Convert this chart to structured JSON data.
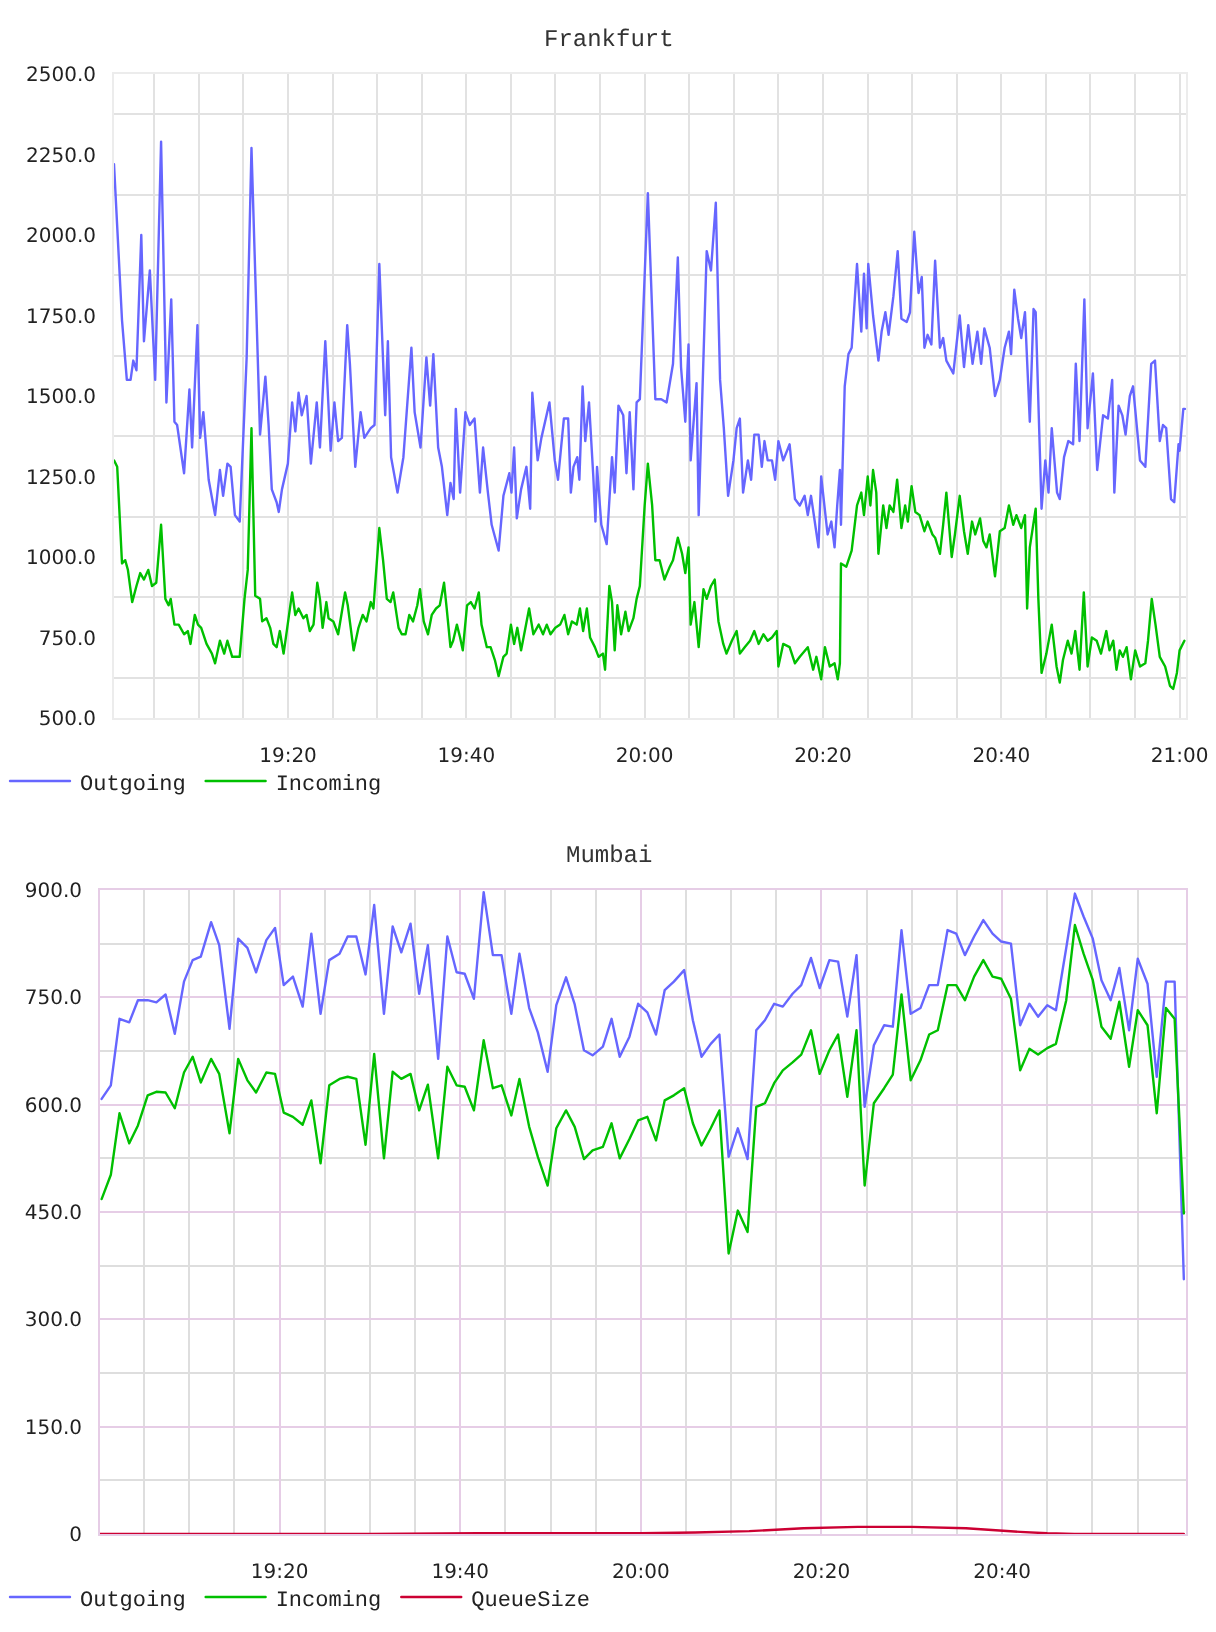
{
  "chart_data": [
    {
      "type": "line",
      "title": "Frankfurt",
      "grid": true,
      "legend": "bottom left",
      "xlim": [
        19.008,
        21.012
      ],
      "xticks": [
        {
          "value": 19.0833,
          "label": null
        },
        {
          "value": 19.1667,
          "label": null
        },
        {
          "value": 19.25,
          "label": null
        },
        {
          "value": 19.3333,
          "label": "19:20"
        },
        {
          "value": 19.4167,
          "label": null
        },
        {
          "value": 19.5,
          "label": null
        },
        {
          "value": 19.5833,
          "label": null
        },
        {
          "value": 19.6667,
          "label": "19:40"
        },
        {
          "value": 19.75,
          "label": null
        },
        {
          "value": 19.8333,
          "label": null
        },
        {
          "value": 19.9167,
          "label": null
        },
        {
          "value": 20,
          "label": "20:00"
        },
        {
          "value": 20.0833,
          "label": null
        },
        {
          "value": 20.1667,
          "label": null
        },
        {
          "value": 20.25,
          "label": null
        },
        {
          "value": 20.3333,
          "label": "20:20"
        },
        {
          "value": 20.4167,
          "label": null
        },
        {
          "value": 20.5,
          "label": null
        },
        {
          "value": 20.5833,
          "label": null
        },
        {
          "value": 20.6667,
          "label": "20:40"
        },
        {
          "value": 20.75,
          "label": null
        },
        {
          "value": 20.8333,
          "label": null
        },
        {
          "value": 20.9167,
          "label": null
        },
        {
          "value": 21,
          "label": "21:00"
        }
      ],
      "ylim": [
        500,
        2500
      ],
      "yticks": [
        {
          "value": 500,
          "label": "500.0"
        },
        {
          "value": 625,
          "label": null
        },
        {
          "value": 750,
          "label": "750.0"
        },
        {
          "value": 875,
          "label": null
        },
        {
          "value": 1000,
          "label": "1000.0"
        },
        {
          "value": 1125,
          "label": null
        },
        {
          "value": 1250,
          "label": "1250.0"
        },
        {
          "value": 1375,
          "label": null
        },
        {
          "value": 1500,
          "label": "1500.0"
        },
        {
          "value": 1625,
          "label": null
        },
        {
          "value": 1750,
          "label": "1750.0"
        },
        {
          "value": 1875,
          "label": null
        },
        {
          "value": 2000,
          "label": "2000.0"
        },
        {
          "value": 2125,
          "label": null
        },
        {
          "value": 2250,
          "label": "2250.0"
        },
        {
          "value": 2375,
          "label": null
        },
        {
          "value": 2500,
          "label": "2500.0"
        }
      ],
      "series": [
        {
          "name": "Outgoing",
          "color": "#6666ff",
          "x": [
            19.008,
            19.023,
            19.032,
            19.039,
            19.044,
            19.05,
            19.059,
            19.064,
            19.075,
            19.085,
            19.096,
            19.106,
            19.115,
            19.121,
            19.126,
            19.139,
            19.149,
            19.154,
            19.164,
            19.169,
            19.175,
            19.185,
            19.197,
            19.206,
            19.212,
            19.22,
            19.226,
            19.234,
            19.243,
            19.256,
            19.265,
            19.281,
            19.291,
            19.297,
            19.303,
            19.312,
            19.316,
            19.322,
            19.333,
            19.341,
            19.347,
            19.353,
            19.359,
            19.368,
            19.376,
            19.387,
            19.393,
            19.403,
            19.413,
            19.42,
            19.427,
            19.434,
            19.444,
            19.449,
            19.459,
            19.469,
            19.476,
            19.488,
            19.495,
            19.504,
            19.515,
            19.52,
            19.526,
            19.538,
            19.549,
            19.564,
            19.57,
            19.581,
            19.592,
            19.599,
            19.605,
            19.614,
            19.621,
            19.631,
            19.637,
            19.643,
            19.647,
            19.655,
            19.665,
            19.673,
            19.682,
            19.692,
            19.698,
            19.707,
            19.714,
            19.727,
            19.736,
            19.747,
            19.751,
            19.756,
            19.761,
            19.769,
            19.779,
            19.786,
            19.79,
            19.8,
            19.807,
            19.822,
            19.832,
            19.838,
            19.849,
            19.857,
            19.862,
            19.867,
            19.874,
            19.878,
            19.884,
            19.889,
            19.896,
            19.904,
            19.908,
            19.911,
            19.919,
            19.929,
            19.939,
            19.944,
            19.951,
            19.96,
            19.966,
            19.972,
            19.979,
            19.985,
            19.991,
            20.006,
            20.02,
            20.031,
            20.041,
            20.053,
            20.062,
            20.068,
            20.076,
            20.082,
            20.086,
            20.097,
            20.101,
            20.116,
            20.124,
            20.133,
            20.141,
            20.148,
            20.156,
            20.166,
            20.172,
            20.178,
            20.184,
            20.193,
            20.199,
            20.205,
            20.213,
            20.219,
            20.224,
            20.23,
            20.238,
            20.244,
            20.25,
            20.259,
            20.271,
            20.281,
            20.29,
            20.299,
            20.305,
            20.311,
            20.325,
            20.33,
            20.342,
            20.349,
            20.355,
            20.36,
            20.365,
            20.367,
            20.374,
            20.381,
            20.387,
            20.397,
            20.405,
            20.41,
            20.415,
            20.418,
            20.427,
            20.437,
            20.443,
            20.45,
            20.456,
            20.465,
            20.473,
            20.48,
            20.49,
            20.496,
            20.504,
            20.512,
            20.518,
            20.523,
            20.529,
            20.536,
            20.543,
            20.552,
            20.558,
            20.564,
            20.577,
            20.589,
            20.597,
            20.605,
            20.613,
            20.622,
            20.629,
            20.635,
            20.645,
            20.655,
            20.664,
            20.673,
            20.681,
            20.685,
            20.691,
            20.698,
            20.704,
            20.711,
            20.72,
            20.727,
            20.731,
            20.742,
            20.749,
            20.755,
            20.761,
            20.771,
            20.776,
            20.784,
            20.792,
            20.801,
            20.806,
            20.813,
            20.822,
            20.828,
            20.838,
            20.846,
            20.857,
            20.866,
            20.874,
            20.878,
            20.886,
            20.893,
            20.899,
            20.907,
            20.913,
            20.926,
            20.936,
            20.947,
            20.954,
            20.963,
            20.969,
            20.975,
            20.984,
            20.99,
            20.998,
            21.0,
            21.007,
            21.01
          ],
          "values": [
            2220,
            1735,
            1550,
            1550,
            1610,
            1580,
            2000,
            1670,
            1890,
            1550,
            2290,
            1480,
            1800,
            1420,
            1410,
            1260,
            1520,
            1340,
            1720,
            1370,
            1450,
            1240,
            1130,
            1270,
            1190,
            1290,
            1280,
            1130,
            1110,
            1620,
            2270,
            1380,
            1560,
            1410,
            1210,
            1170,
            1140,
            1210,
            1290,
            1480,
            1390,
            1510,
            1440,
            1500,
            1290,
            1480,
            1340,
            1670,
            1330,
            1480,
            1360,
            1370,
            1720,
            1600,
            1280,
            1450,
            1370,
            1400,
            1410,
            1910,
            1440,
            1670,
            1310,
            1200,
            1310,
            1650,
            1450,
            1340,
            1620,
            1470,
            1630,
            1340,
            1280,
            1130,
            1230,
            1180,
            1460,
            1200,
            1450,
            1410,
            1430,
            1200,
            1340,
            1200,
            1100,
            1020,
            1190,
            1260,
            1200,
            1340,
            1120,
            1210,
            1280,
            1150,
            1510,
            1300,
            1370,
            1480,
            1300,
            1240,
            1430,
            1430,
            1200,
            1280,
            1310,
            1240,
            1530,
            1360,
            1480,
            1250,
            1110,
            1280,
            1100,
            1040,
            1310,
            1200,
            1470,
            1440,
            1260,
            1450,
            1210,
            1480,
            1490,
            2130,
            1490,
            1490,
            1480,
            1600,
            1930,
            1590,
            1420,
            1660,
            1300,
            1540,
            1130,
            1950,
            1890,
            2100,
            1550,
            1400,
            1190,
            1300,
            1400,
            1430,
            1200,
            1300,
            1240,
            1380,
            1380,
            1280,
            1360,
            1300,
            1300,
            1240,
            1360,
            1300,
            1350,
            1180,
            1160,
            1190,
            1130,
            1190,
            1030,
            1250,
            1070,
            1110,
            1030,
            1160,
            1270,
            1100,
            1530,
            1630,
            1650,
            1910,
            1700,
            1880,
            1710,
            1910,
            1750,
            1610,
            1700,
            1760,
            1690,
            1810,
            1950,
            1740,
            1730,
            1760,
            2010,
            1820,
            1870,
            1650,
            1690,
            1660,
            1920,
            1650,
            1680,
            1610,
            1570,
            1750,
            1590,
            1720,
            1600,
            1700,
            1600,
            1710,
            1650,
            1500,
            1550,
            1650,
            1700,
            1630,
            1830,
            1740,
            1680,
            1760,
            1420,
            1770,
            1760,
            1150,
            1300,
            1200,
            1400,
            1200,
            1180,
            1310,
            1360,
            1350,
            1600,
            1360,
            1800,
            1400,
            1570,
            1270,
            1440,
            1430,
            1550,
            1200,
            1470,
            1440,
            1380,
            1500,
            1530,
            1300,
            1280,
            1600,
            1610,
            1360,
            1410,
            1400,
            1180,
            1170,
            1350,
            1330,
            1460,
            1460
          ]
        },
        {
          "name": "Incoming",
          "color": "#00c000",
          "x": [
            19.008,
            19.014,
            19.023,
            19.029,
            19.034,
            19.042,
            19.05,
            19.057,
            19.064,
            19.072,
            19.079,
            19.087,
            19.096,
            19.104,
            19.11,
            19.114,
            19.121,
            19.129,
            19.139,
            19.146,
            19.151,
            19.159,
            19.165,
            19.171,
            19.181,
            19.191,
            19.197,
            19.206,
            19.214,
            19.22,
            19.229,
            19.237,
            19.243,
            19.252,
            19.258,
            19.265,
            19.272,
            19.281,
            19.285,
            19.293,
            19.3,
            19.306,
            19.312,
            19.318,
            19.325,
            19.331,
            19.341,
            19.347,
            19.353,
            19.362,
            19.368,
            19.374,
            19.381,
            19.388,
            19.393,
            19.398,
            19.405,
            19.409,
            19.418,
            19.427,
            19.433,
            19.44,
            19.445,
            19.456,
            19.465,
            19.473,
            19.48,
            19.488,
            19.493,
            19.504,
            19.511,
            19.518,
            19.525,
            19.53,
            19.54,
            19.546,
            19.553,
            19.56,
            19.567,
            19.575,
            19.58,
            19.587,
            19.595,
            19.602,
            19.61,
            19.617,
            19.625,
            19.63,
            19.637,
            19.642,
            19.649,
            19.655,
            19.66,
            19.668,
            19.675,
            19.682,
            19.69,
            19.695,
            19.705,
            19.712,
            19.72,
            19.727,
            19.736,
            19.742,
            19.75,
            19.756,
            19.762,
            19.769,
            19.776,
            19.784,
            19.792,
            19.802,
            19.81,
            19.817,
            19.824,
            19.833,
            19.842,
            19.85,
            19.857,
            19.864,
            19.873,
            19.879,
            19.885,
            19.892,
            19.898,
            19.907,
            19.914,
            19.922,
            19.926,
            19.934,
            19.939,
            19.944,
            19.949,
            19.956,
            19.964,
            19.97,
            19.979,
            19.985,
            19.991,
            20.0,
            20.006,
            20.014,
            20.02,
            20.028,
            20.037,
            20.047,
            20.053,
            20.062,
            20.07,
            20.076,
            20.082,
            20.086,
            20.093,
            20.101,
            20.11,
            20.116,
            20.124,
            20.131,
            20.138,
            20.147,
            20.153,
            20.163,
            20.172,
            20.178,
            20.187,
            20.197,
            20.205,
            20.213,
            20.222,
            20.23,
            20.238,
            20.247,
            20.25,
            20.259,
            20.271,
            20.281,
            20.29,
            20.305,
            20.315,
            20.321,
            20.33,
            20.337,
            20.346,
            20.355,
            20.361,
            20.365,
            20.367,
            20.377,
            20.387,
            20.397,
            20.405,
            20.41,
            20.417,
            20.422,
            20.427,
            20.433,
            20.437,
            20.446,
            20.452,
            20.458,
            20.465,
            20.472,
            20.48,
            20.487,
            20.492,
            20.499,
            20.506,
            20.514,
            20.523,
            20.529,
            20.538,
            20.543,
            20.552,
            20.558,
            20.564,
            20.574,
            20.58,
            20.589,
            20.597,
            20.604,
            20.612,
            20.618,
            20.627,
            20.633,
            20.639,
            20.645,
            20.655,
            20.664,
            20.673,
            20.681,
            20.689,
            20.695,
            20.704,
            20.711,
            20.715,
            20.72,
            20.731,
            20.736,
            20.742,
            20.751,
            20.761,
            20.77,
            20.776,
            20.782,
            20.791,
            20.798,
            20.805,
            20.813,
            20.821,
            20.828,
            20.836,
            20.845,
            20.853,
            20.863,
            20.869,
            20.876,
            20.882,
            20.888,
            20.894,
            20.901,
            20.909,
            20.917,
            20.926,
            20.936,
            20.941,
            20.948,
            20.955,
            20.963,
            20.973,
            20.982,
            20.988,
            20.995,
            21.0,
            21.009
          ],
          "values": [
            1300,
            1280,
            980,
            990,
            960,
            860,
            910,
            950,
            930,
            960,
            910,
            920,
            1100,
            870,
            850,
            870,
            790,
            790,
            760,
            770,
            730,
            820,
            790,
            780,
            730,
            700,
            670,
            740,
            700,
            740,
            690,
            690,
            690,
            870,
            960,
            1400,
            880,
            870,
            800,
            810,
            780,
            730,
            720,
            770,
            700,
            770,
            890,
            820,
            840,
            810,
            820,
            770,
            790,
            920,
            870,
            780,
            860,
            810,
            800,
            760,
            820,
            890,
            850,
            710,
            780,
            820,
            800,
            860,
            840,
            1090,
            990,
            870,
            860,
            890,
            780,
            760,
            760,
            820,
            800,
            850,
            900,
            800,
            760,
            820,
            840,
            850,
            920,
            840,
            720,
            740,
            790,
            750,
            710,
            850,
            860,
            840,
            890,
            790,
            720,
            720,
            680,
            630,
            690,
            700,
            790,
            730,
            780,
            710,
            770,
            840,
            760,
            790,
            760,
            790,
            760,
            780,
            790,
            820,
            760,
            800,
            790,
            840,
            770,
            840,
            750,
            720,
            690,
            700,
            650,
            910,
            860,
            710,
            850,
            760,
            830,
            770,
            810,
            870,
            910,
            1160,
            1290,
            1160,
            990,
            990,
            930,
            970,
            990,
            1060,
            1010,
            950,
            1030,
            790,
            860,
            720,
            900,
            870,
            910,
            930,
            800,
            730,
            700,
            740,
            770,
            700,
            720,
            740,
            770,
            730,
            760,
            740,
            750,
            770,
            660,
            730,
            720,
            670,
            690,
            720,
            650,
            690,
            620,
            720,
            660,
            670,
            620,
            670,
            980,
            970,
            1020,
            1160,
            1200,
            1130,
            1250,
            1160,
            1270,
            1200,
            1010,
            1160,
            1090,
            1160,
            1140,
            1240,
            1090,
            1160,
            1110,
            1220,
            1140,
            1130,
            1080,
            1110,
            1070,
            1060,
            1010,
            1100,
            1200,
            1000,
            1070,
            1190,
            1080,
            1010,
            1110,
            1070,
            1120,
            1050,
            1030,
            1070,
            940,
            1080,
            1090,
            1160,
            1100,
            1130,
            1090,
            1130,
            840,
            1030,
            1150,
            870,
            640,
            700,
            790,
            660,
            610,
            680,
            740,
            700,
            770,
            650,
            890,
            660,
            750,
            740,
            700,
            770,
            710,
            740,
            650,
            710,
            690,
            720,
            620,
            710,
            660,
            670,
            740,
            870,
            790,
            690,
            660,
            600,
            590,
            640,
            710,
            740
          ]
        }
      ]
    },
    {
      "type": "line",
      "title": "Mumbai",
      "grid": true,
      "legend": "bottom left",
      "xlim": [
        19.002,
        21.006
      ],
      "xticks": [
        {
          "value": 19.0833,
          "label": null
        },
        {
          "value": 19.1667,
          "label": null
        },
        {
          "value": 19.25,
          "label": null
        },
        {
          "value": 19.3333,
          "label": "19:20"
        },
        {
          "value": 19.4167,
          "label": null
        },
        {
          "value": 19.5,
          "label": null
        },
        {
          "value": 19.5833,
          "label": null
        },
        {
          "value": 19.6667,
          "label": "19:40"
        },
        {
          "value": 19.75,
          "label": null
        },
        {
          "value": 19.8333,
          "label": null
        },
        {
          "value": 19.9167,
          "label": null
        },
        {
          "value": 20,
          "label": "20:00"
        },
        {
          "value": 20.0833,
          "label": null
        },
        {
          "value": 20.1667,
          "label": null
        },
        {
          "value": 20.25,
          "label": null
        },
        {
          "value": 20.3333,
          "label": "20:20"
        },
        {
          "value": 20.4167,
          "label": null
        },
        {
          "value": 20.5,
          "label": null
        },
        {
          "value": 20.5833,
          "label": null
        },
        {
          "value": 20.6667,
          "label": "20:40"
        },
        {
          "value": 20.75,
          "label": null
        },
        {
          "value": 20.8333,
          "label": null
        },
        {
          "value": 20.9167,
          "label": null
        }
      ],
      "ylim": [
        0,
        900
      ],
      "yticks": [
        0,
        {
          "value": 75,
          "label": null
        },
        {
          "value": 150,
          "label": "150.0"
        },
        {
          "value": 225,
          "label": null
        },
        {
          "value": 300,
          "label": "300.0"
        },
        {
          "value": 375,
          "label": null
        },
        {
          "value": 450,
          "label": "450.0"
        },
        {
          "value": 525,
          "label": null
        },
        {
          "value": 600,
          "label": "600.0"
        },
        {
          "value": 675,
          "label": null
        },
        {
          "value": 750,
          "label": "750.0"
        },
        {
          "value": 825,
          "label": null
        },
        {
          "value": 900,
          "label": "900.0"
        }
      ],
      "x": [
        19.005,
        19.022,
        19.038,
        19.056,
        19.072,
        19.09,
        19.106,
        19.123,
        19.14,
        19.157,
        19.173,
        19.188,
        19.207,
        19.222,
        19.241,
        19.257,
        19.274,
        19.29,
        19.309,
        19.325,
        19.341,
        19.358,
        19.376,
        19.392,
        19.409,
        19.425,
        19.444,
        19.459,
        19.475,
        19.492,
        19.508,
        19.526,
        19.542,
        19.558,
        19.575,
        19.591,
        19.607,
        19.626,
        19.643,
        19.66,
        19.675,
        19.692,
        19.71,
        19.727,
        19.743,
        19.761,
        19.776,
        19.794,
        19.81,
        19.828,
        19.844,
        19.862,
        19.878,
        19.895,
        19.911,
        19.93,
        19.946,
        19.961,
        19.979,
        19.995,
        20.012,
        20.028,
        20.044,
        20.061,
        20.08,
        20.096,
        20.112,
        20.129,
        20.145,
        20.162,
        20.179,
        20.197,
        20.213,
        20.229,
        20.246,
        20.262,
        20.28,
        20.296,
        20.314,
        20.33,
        20.348,
        20.364,
        20.381,
        20.398,
        20.413,
        20.43,
        20.449,
        20.465,
        20.481,
        20.498,
        20.516,
        20.532,
        20.548,
        20.566,
        20.582,
        20.598,
        20.615,
        20.632,
        20.649,
        20.665,
        20.683,
        20.7,
        20.717,
        20.733,
        20.75,
        20.766,
        20.785,
        20.801,
        20.817,
        20.834,
        20.85,
        20.867,
        20.883,
        20.901,
        20.917,
        20.935,
        20.952,
        20.969,
        20.985,
        21.002
      ],
      "series": [
        {
          "name": "Outgoing",
          "color": "#6666ff",
          "values": [
            608,
            627,
            720,
            715,
            746,
            746,
            743,
            754,
            699,
            772,
            802,
            807,
            855,
            823,
            706,
            832,
            819,
            785,
            830,
            847,
            767,
            779,
            737,
            839,
            727,
            802,
            811,
            835,
            835,
            782,
            879,
            727,
            849,
            813,
            853,
            755,
            823,
            664,
            835,
            785,
            783,
            748,
            897,
            809,
            809,
            727,
            811,
            735,
            701,
            646,
            739,
            778,
            740,
            676,
            669,
            681,
            720,
            667,
            695,
            741,
            729,
            698,
            760,
            772,
            788,
            718,
            667,
            685,
            698,
            527,
            567,
            524,
            704,
            718,
            741,
            737,
            755,
            767,
            805,
            763,
            802,
            800,
            723,
            809,
            597,
            683,
            711,
            709,
            844,
            727,
            735,
            767,
            767,
            844,
            839,
            809,
            835,
            858,
            839,
            828,
            825,
            711,
            741,
            723,
            739,
            732,
            819,
            895,
            863,
            832,
            774,
            746,
            791,
            704,
            804,
            769,
            639,
            772,
            772,
            356
          ]
        },
        {
          "name": "Incoming",
          "color": "#00c000",
          "values": [
            468,
            502,
            588,
            546,
            571,
            613,
            618,
            617,
            595,
            645,
            667,
            631,
            664,
            643,
            560,
            664,
            634,
            617,
            645,
            643,
            589,
            583,
            572,
            606,
            518,
            627,
            636,
            639,
            636,
            544,
            671,
            525,
            646,
            636,
            643,
            592,
            628,
            525,
            653,
            627,
            625,
            592,
            690,
            623,
            627,
            585,
            636,
            569,
            527,
            487,
            567,
            592,
            569,
            524,
            536,
            541,
            574,
            525,
            552,
            578,
            583,
            550,
            606,
            613,
            623,
            574,
            543,
            567,
            592,
            392,
            452,
            422,
            597,
            602,
            630,
            648,
            659,
            670,
            704,
            643,
            676,
            698,
            611,
            704,
            487,
            602,
            623,
            642,
            754,
            634,
            662,
            698,
            704,
            767,
            767,
            746,
            779,
            802,
            779,
            776,
            748,
            648,
            678,
            670,
            679,
            685,
            746,
            851,
            811,
            774,
            709,
            692,
            744,
            653,
            732,
            711,
            588,
            735,
            720,
            448
          ]
        },
        {
          "name": "QueueSize",
          "color": "#cc0033",
          "x": [
            19.002,
            19.5,
            19.7,
            19.9,
            20.0,
            20.1,
            20.2,
            20.3,
            20.4,
            20.5,
            20.6,
            20.7,
            20.75,
            20.8,
            21.002
          ],
          "values": [
            0,
            0,
            1,
            1,
            1,
            2,
            4,
            8,
            10,
            10,
            8,
            3,
            1,
            0,
            0
          ]
        }
      ]
    }
  ]
}
